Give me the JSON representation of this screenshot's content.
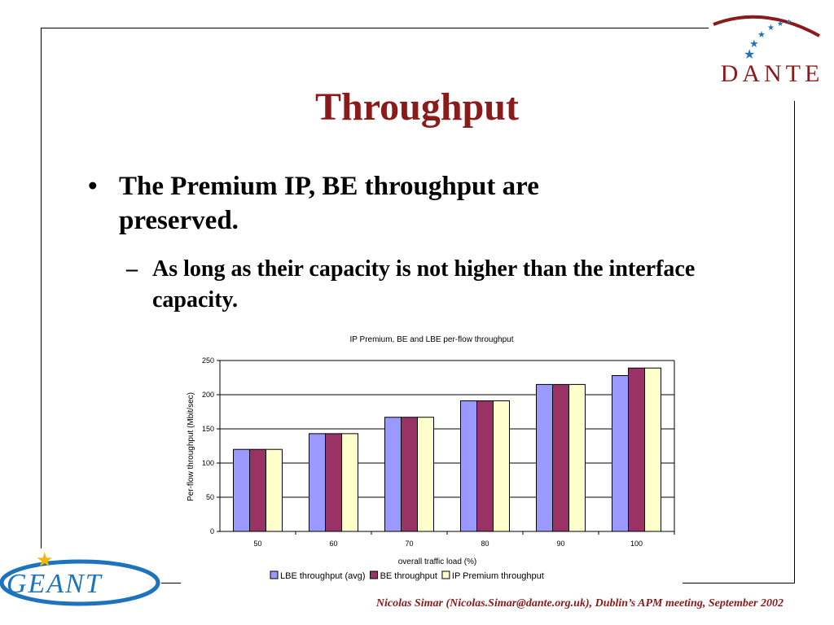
{
  "slide": {
    "title": "Throughput",
    "bullet_mark": "•",
    "bullet_text": "The Premium IP, BE throughput are preserved.",
    "sub_mark": "–",
    "sub_text": "As long as their capacity is not higher than the interface capacity.",
    "footer": "Nicolas Simar (Nicolas.Simar@dante.org.uk), Dublin’s APM meeting, September 2002",
    "logo_top": "DANTE",
    "logo_bottom": "GEANT"
  },
  "chart_data": {
    "type": "bar",
    "title": "IP Premium, BE and LBE per-flow throughput",
    "xlabel": "overall traffic load (%)",
    "ylabel": "Per-flow throughput (Mbit/sec)",
    "categories": [
      "50",
      "60",
      "70",
      "80",
      "90",
      "100"
    ],
    "ylim": [
      0,
      250
    ],
    "yticks": [
      0,
      50,
      100,
      150,
      200,
      250
    ],
    "grid": true,
    "legend_position": "bottom",
    "series": [
      {
        "name": "LBE throughput (avg)",
        "color": "#9999ff",
        "values": [
          120,
          143,
          167,
          191,
          215,
          228
        ]
      },
      {
        "name": "BE throughput",
        "color": "#993366",
        "values": [
          120,
          143,
          167,
          191,
          215,
          239
        ]
      },
      {
        "name": "IP Premium throughput",
        "color": "#ffffcc",
        "values": [
          120,
          143,
          167,
          191,
          215,
          239
        ]
      }
    ]
  }
}
